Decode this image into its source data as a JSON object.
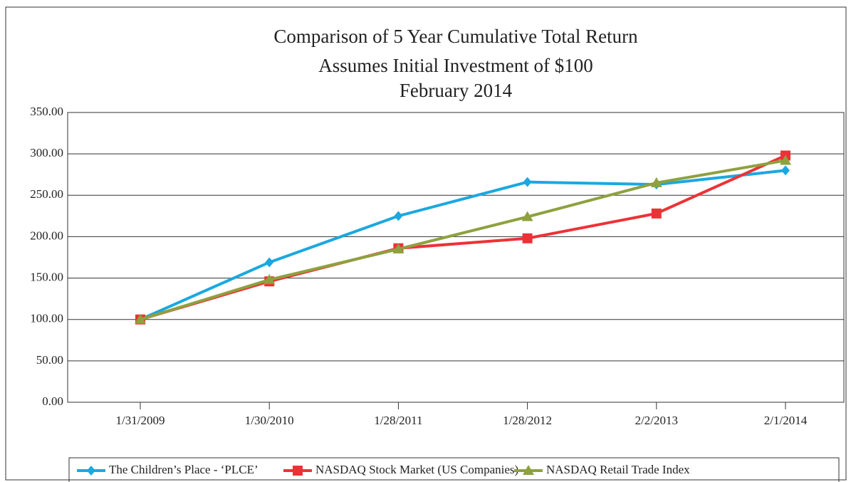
{
  "chart_data": {
    "type": "line",
    "title": "Comparison of 5 Year Cumulative Total Return",
    "subtitle": [
      "Assumes Initial Investment of $100",
      "February 2014"
    ],
    "categories": [
      "1/31/2009",
      "1/30/2010",
      "1/28/2011",
      "1/28/2012",
      "2/2/2013",
      "2/1/2014"
    ],
    "series": [
      {
        "name": "The Children’s Place - ‘PLCE’",
        "color": "#1ba8e0",
        "marker": "diamond",
        "values": [
          100,
          169,
          225,
          266,
          263,
          280
        ]
      },
      {
        "name": "NASDAQ Stock Market (US Companies)",
        "color": "#ed3237",
        "marker": "square",
        "values": [
          100,
          146,
          186,
          198,
          228,
          298
        ]
      },
      {
        "name": "NASDAQ Retail Trade Index",
        "color": "#8ea13f",
        "marker": "triangle",
        "values": [
          100,
          148,
          185,
          224,
          265,
          292
        ]
      }
    ],
    "ylim": [
      0,
      350
    ],
    "yticks": [
      {
        "value": 0,
        "label": "0.00"
      },
      {
        "value": 50,
        "label": "50.00"
      },
      {
        "value": 100,
        "label": "100.00"
      },
      {
        "value": 150,
        "label": "150.00"
      },
      {
        "value": 200,
        "label": "200.00"
      },
      {
        "value": 250,
        "label": "250.00"
      },
      {
        "value": 300,
        "label": "300.00"
      },
      {
        "value": 350,
        "label": "350.00"
      }
    ],
    "grid": true,
    "legend": "bottom"
  }
}
